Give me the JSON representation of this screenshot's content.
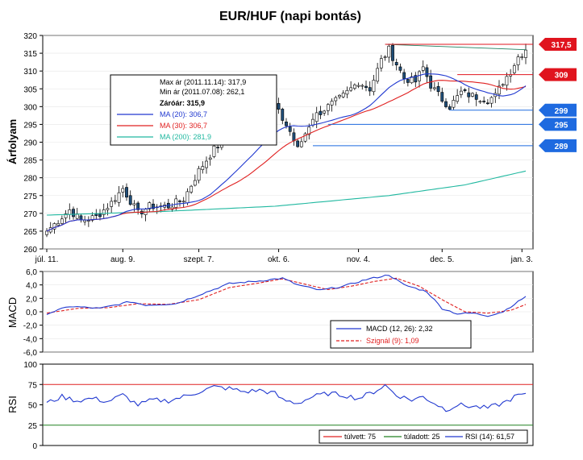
{
  "title": "EUR/HUF (napi bontás)",
  "colors": {
    "up": "#ffffff",
    "down": "#1f4e79",
    "ma20": "#2038d0",
    "ma30": "#e02020",
    "ma200": "#20b8a0",
    "macd": "#2038d0",
    "signal": "#e02020",
    "rsi": "#2038d0",
    "overbought": "#e02020",
    "oversold": "#208020",
    "tag_red": "#e0141e",
    "tag_blue": "#1e6ae0"
  },
  "chart_data": [
    {
      "type": "candlestick",
      "ylabel": "Árfolyam",
      "ylim": [
        260,
        320
      ],
      "yticks": [
        260,
        265,
        270,
        275,
        280,
        285,
        290,
        295,
        300,
        305,
        310,
        315,
        320
      ],
      "xticks": [
        {
          "i": 0,
          "label": "júl. 11."
        },
        {
          "i": 20,
          "label": "aug. 9."
        },
        {
          "i": 40,
          "label": "szept. 7."
        },
        {
          "i": 61,
          "label": "okt. 6."
        },
        {
          "i": 82,
          "label": "nov. 4."
        },
        {
          "i": 104,
          "label": "dec. 5."
        },
        {
          "i": 125,
          "label": "jan. 3."
        }
      ],
      "n_days": 127,
      "close_keypoints": [
        [
          0,
          265
        ],
        [
          3,
          268
        ],
        [
          6,
          271
        ],
        [
          9,
          268
        ],
        [
          13,
          269
        ],
        [
          17,
          273
        ],
        [
          20,
          277
        ],
        [
          24,
          270
        ],
        [
          27,
          272
        ],
        [
          32,
          272
        ],
        [
          36,
          274
        ],
        [
          40,
          282
        ],
        [
          44,
          288
        ],
        [
          48,
          292
        ],
        [
          52,
          293
        ],
        [
          56,
          297
        ],
        [
          60,
          300
        ],
        [
          64,
          293
        ],
        [
          66,
          288
        ],
        [
          70,
          297
        ],
        [
          74,
          300
        ],
        [
          78,
          303
        ],
        [
          82,
          307
        ],
        [
          85,
          305
        ],
        [
          88,
          313
        ],
        [
          90,
          316
        ],
        [
          92,
          312
        ],
        [
          94,
          308
        ],
        [
          97,
          307
        ],
        [
          99,
          311
        ],
        [
          101,
          306
        ],
        [
          104,
          302
        ],
        [
          106,
          300
        ],
        [
          109,
          304
        ],
        [
          112,
          303
        ],
        [
          116,
          302
        ],
        [
          118,
          303
        ],
        [
          120,
          307
        ],
        [
          122,
          310
        ],
        [
          124,
          314
        ],
        [
          126,
          315.9
        ]
      ],
      "info_box": {
        "max": "Max ár (2011.11.14): 317,9",
        "min": "Min ár (2011.07.08): 262,1",
        "close": "Záróár: 315,9",
        "ma20": "MA (20): 306,7",
        "ma30": "MA (30): 306,7",
        "ma200": "MA (200): 281,9"
      },
      "ma200": [
        [
          0,
          269.5
        ],
        [
          30,
          270.5
        ],
        [
          60,
          272
        ],
        [
          90,
          275
        ],
        [
          110,
          278
        ],
        [
          126,
          281.9
        ]
      ],
      "levels": [
        {
          "value": 317.5,
          "label": "317,5",
          "color": "red"
        },
        {
          "value": 309,
          "label": "309",
          "color": "red"
        },
        {
          "value": 299,
          "label": "299",
          "color": "blue"
        },
        {
          "value": 295,
          "label": "295",
          "color": "blue"
        },
        {
          "value": 289,
          "label": "289",
          "color": "blue"
        }
      ],
      "trendline": [
        [
          89,
          317.5
        ],
        [
          126,
          316
        ]
      ]
    },
    {
      "type": "line",
      "ylabel": "MACD",
      "ylim": [
        -6,
        6
      ],
      "yticks": [
        "6,0",
        "4,0",
        "2,0",
        "0,0",
        "-2,0",
        "-4,0",
        "-6,0"
      ],
      "yticks_values": [
        6,
        4,
        2,
        0,
        -2,
        -4,
        -6
      ],
      "series": [
        {
          "name": "MACD (12, 26): 2,32",
          "keypoints": [
            [
              0,
              -0.3
            ],
            [
              6,
              0.8
            ],
            [
              14,
              0.5
            ],
            [
              22,
              1.5
            ],
            [
              26,
              1.0
            ],
            [
              34,
              1.2
            ],
            [
              40,
              2.5
            ],
            [
              48,
              4.2
            ],
            [
              56,
              4.6
            ],
            [
              62,
              5.0
            ],
            [
              66,
              4.0
            ],
            [
              72,
              3.2
            ],
            [
              78,
              3.8
            ],
            [
              84,
              4.8
            ],
            [
              90,
              5.5
            ],
            [
              94,
              4.0
            ],
            [
              100,
              3.0
            ],
            [
              104,
              0.5
            ],
            [
              108,
              -0.3
            ],
            [
              112,
              -0.2
            ],
            [
              116,
              -0.6
            ],
            [
              120,
              0.0
            ],
            [
              124,
              1.5
            ],
            [
              126,
              2.32
            ]
          ]
        },
        {
          "name": "Szignál (9): 1,09",
          "keypoints": [
            [
              0,
              -0.2
            ],
            [
              8,
              0.5
            ],
            [
              16,
              0.6
            ],
            [
              24,
              1.2
            ],
            [
              32,
              1.1
            ],
            [
              40,
              1.8
            ],
            [
              48,
              3.6
            ],
            [
              56,
              4.3
            ],
            [
              62,
              4.9
            ],
            [
              68,
              4.1
            ],
            [
              74,
              3.3
            ],
            [
              80,
              3.8
            ],
            [
              86,
              4.5
            ],
            [
              92,
              5.0
            ],
            [
              98,
              3.8
            ],
            [
              104,
              1.8
            ],
            [
              110,
              0.0
            ],
            [
              116,
              -0.2
            ],
            [
              122,
              0.2
            ],
            [
              126,
              1.09
            ]
          ]
        }
      ]
    },
    {
      "type": "line",
      "ylabel": "RSI",
      "ylim": [
        0,
        100
      ],
      "yticks": [
        0,
        25,
        50,
        75,
        100
      ],
      "overbought": 75,
      "oversold": 25,
      "series": [
        {
          "name": "RSI (14): 61,57",
          "keypoints": [
            [
              0,
              52
            ],
            [
              4,
              60
            ],
            [
              8,
              55
            ],
            [
              12,
              58
            ],
            [
              16,
              54
            ],
            [
              20,
              62
            ],
            [
              24,
              50
            ],
            [
              28,
              56
            ],
            [
              32,
              55
            ],
            [
              36,
              60
            ],
            [
              40,
              66
            ],
            [
              44,
              72
            ],
            [
              48,
              70
            ],
            [
              52,
              66
            ],
            [
              56,
              68
            ],
            [
              60,
              64
            ],
            [
              62,
              56
            ],
            [
              66,
              52
            ],
            [
              70,
              60
            ],
            [
              74,
              64
            ],
            [
              78,
              62
            ],
            [
              82,
              58
            ],
            [
              86,
              66
            ],
            [
              89,
              74
            ],
            [
              92,
              62
            ],
            [
              96,
              56
            ],
            [
              99,
              60
            ],
            [
              102,
              52
            ],
            [
              105,
              44
            ],
            [
              108,
              50
            ],
            [
              112,
              48
            ],
            [
              116,
              46
            ],
            [
              120,
              52
            ],
            [
              124,
              62
            ],
            [
              126,
              61.57
            ]
          ]
        }
      ],
      "legend": [
        "túlvett: 75",
        "túladott: 25",
        "RSI (14): 61,57"
      ]
    }
  ]
}
